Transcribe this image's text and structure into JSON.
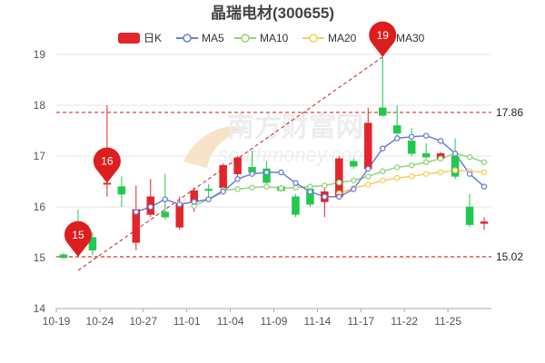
{
  "chart_data": {
    "type": "candlestick",
    "title": "晶瑞电材(300655)",
    "x_tick_labels": [
      "10-19",
      "10-24",
      "10-27",
      "11-01",
      "11-04",
      "11-09",
      "11-14",
      "11-17",
      "11-22",
      "11-25"
    ],
    "ylim": [
      14,
      19
    ],
    "y_ticks": [
      14,
      15,
      16,
      17,
      18,
      19
    ],
    "grid": "horizontal",
    "legend_position": "top-center",
    "legend": [
      {
        "name": "日K",
        "color": "#e2252c"
      },
      {
        "name": "MA5",
        "color": "#6a7fd4"
      },
      {
        "name": "MA10",
        "color": "#93d47a"
      },
      {
        "name": "MA20",
        "color": "#f7ce5a"
      },
      {
        "name": "MA30",
        "color": "#e07ad2"
      }
    ],
    "colors": {
      "up": "#e2252c",
      "down": "#21c94c",
      "ref_line": "#cc1f1f",
      "grid": "#e6e6e6",
      "axis": "#aaaaaa"
    },
    "candles": [
      {
        "o": 15.06,
        "c": 15.0,
        "h": 15.1,
        "l": 14.98
      },
      {
        "o": 15.55,
        "c": 15.25,
        "h": 15.95,
        "l": 15.02
      },
      {
        "o": 15.4,
        "c": 15.15,
        "h": 15.5,
        "l": 15.05
      },
      {
        "o": 16.45,
        "c": 16.47,
        "h": 18.0,
        "l": 16.2
      },
      {
        "o": 16.4,
        "c": 16.25,
        "h": 16.6,
        "l": 16.0
      },
      {
        "o": 15.3,
        "c": 15.95,
        "h": 16.42,
        "l": 15.15
      },
      {
        "o": 15.85,
        "c": 16.2,
        "h": 16.55,
        "l": 15.8
      },
      {
        "o": 15.9,
        "c": 15.8,
        "h": 16.65,
        "l": 15.75
      },
      {
        "o": 15.6,
        "c": 16.05,
        "h": 16.2,
        "l": 15.55
      },
      {
        "o": 16.1,
        "c": 16.32,
        "h": 16.38,
        "l": 15.9
      },
      {
        "o": 16.35,
        "c": 16.33,
        "h": 16.45,
        "l": 16.2
      },
      {
        "o": 16.38,
        "c": 16.82,
        "h": 16.85,
        "l": 16.3
      },
      {
        "o": 16.65,
        "c": 16.97,
        "h": 17.0,
        "l": 16.6
      },
      {
        "o": 16.78,
        "c": 16.68,
        "h": 17.1,
        "l": 16.6
      },
      {
        "o": 16.75,
        "c": 16.48,
        "h": 16.9,
        "l": 16.4
      },
      {
        "o": 16.4,
        "c": 16.32,
        "h": 16.42,
        "l": 16.3
      },
      {
        "o": 16.2,
        "c": 15.85,
        "h": 16.25,
        "l": 15.8
      },
      {
        "o": 16.35,
        "c": 16.05,
        "h": 16.4,
        "l": 16.0
      },
      {
        "o": 16.1,
        "c": 16.3,
        "h": 16.45,
        "l": 15.8
      },
      {
        "o": 16.2,
        "c": 16.95,
        "h": 17.0,
        "l": 16.15
      },
      {
        "o": 16.9,
        "c": 16.8,
        "h": 16.95,
        "l": 16.75
      },
      {
        "o": 16.75,
        "c": 17.65,
        "h": 17.95,
        "l": 16.7
      },
      {
        "o": 17.95,
        "c": 17.8,
        "h": 18.95,
        "l": 17.78
      },
      {
        "o": 17.6,
        "c": 17.45,
        "h": 18.0,
        "l": 17.4
      },
      {
        "o": 17.3,
        "c": 17.05,
        "h": 17.55,
        "l": 17.0
      },
      {
        "o": 17.05,
        "c": 16.98,
        "h": 17.25,
        "l": 16.95
      },
      {
        "o": 16.95,
        "c": 17.05,
        "h": 17.08,
        "l": 16.92
      },
      {
        "o": 17.0,
        "c": 16.6,
        "h": 17.35,
        "l": 16.55
      },
      {
        "o": 16.0,
        "c": 15.65,
        "h": 16.25,
        "l": 15.6
      },
      {
        "o": 15.68,
        "c": 15.7,
        "h": 15.8,
        "l": 15.55
      }
    ],
    "ma5": [
      null,
      null,
      null,
      null,
      null,
      15.9,
      16.0,
      16.15,
      16.05,
      16.1,
      16.15,
      16.3,
      16.55,
      16.65,
      16.68,
      16.68,
      16.47,
      16.3,
      16.2,
      16.2,
      16.35,
      16.75,
      17.15,
      17.35,
      17.38,
      17.4,
      17.3,
      17.05,
      16.65,
      16.4
    ],
    "ma10": [
      null,
      null,
      null,
      null,
      null,
      null,
      null,
      null,
      null,
      16.02,
      16.15,
      16.33,
      16.35,
      16.38,
      16.4,
      16.37,
      16.38,
      16.4,
      16.42,
      16.48,
      16.52,
      16.6,
      16.7,
      16.78,
      16.82,
      16.88,
      16.95,
      17.05,
      16.98,
      16.88
    ],
    "ma20": [
      null,
      null,
      null,
      null,
      null,
      null,
      null,
      null,
      null,
      null,
      null,
      null,
      null,
      null,
      null,
      null,
      null,
      null,
      null,
      16.27,
      16.37,
      16.44,
      16.52,
      16.57,
      16.6,
      16.65,
      16.68,
      16.72,
      16.7,
      16.68
    ],
    "ref_lines": [
      {
        "value": 17.86,
        "label": "17.86"
      },
      {
        "value": 15.02,
        "label": "15.02"
      }
    ],
    "markers": [
      {
        "label": "15",
        "index": 1,
        "value": 15.02
      },
      {
        "label": "16",
        "index": 3,
        "value": 16.47
      },
      {
        "label": "19",
        "index": 22,
        "value": 18.95
      }
    ],
    "trend_line": {
      "from": {
        "index": 1,
        "value": 14.75
      },
      "to": {
        "index": 22,
        "value": 18.95
      }
    },
    "last_price_marker": {
      "index": 29,
      "value": 15.7
    }
  },
  "watermark": {
    "text": "南方财富网",
    "sub": "southmoney.com"
  }
}
